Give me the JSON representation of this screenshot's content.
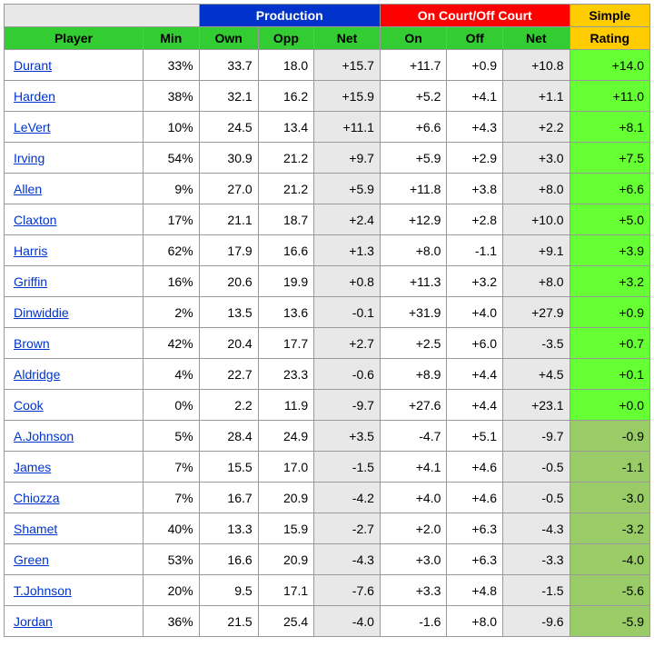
{
  "colors": {
    "group_blank_bg": "#e8e8e8",
    "group_prod_bg": "#0033cc",
    "group_prod_fg": "#ffffff",
    "group_court_bg": "#ff0000",
    "group_court_fg": "#ffffff",
    "group_simple_bg": "#ffcc00",
    "group_simple_fg": "#000000",
    "col_header_green_bg": "#33cc33",
    "col_header_yellow_bg": "#ffcc00",
    "shade_bg": "#e8e8e8",
    "rating_pos_bg": "#66ff33",
    "rating_neg_bg": "#99cc66",
    "link_color": "#0033cc",
    "border_color": "#999999"
  },
  "group_headers": {
    "production": "Production",
    "on_off": "On Court/Off Court",
    "simple": "Simple"
  },
  "columns": {
    "player": "Player",
    "min": "Min",
    "own": "Own",
    "opp": "Opp",
    "net_prod": "Net",
    "on": "On",
    "off": "Off",
    "net_court": "Net",
    "rating": "Rating"
  },
  "rows": [
    {
      "player": "Durant",
      "min": "33%",
      "own": "33.7",
      "opp": "18.0",
      "net_prod": "+15.7",
      "on": "+11.7",
      "off": "+0.9",
      "net_court": "+10.8",
      "rating": "+14.0"
    },
    {
      "player": "Harden",
      "min": "38%",
      "own": "32.1",
      "opp": "16.2",
      "net_prod": "+15.9",
      "on": "+5.2",
      "off": "+4.1",
      "net_court": "+1.1",
      "rating": "+11.0"
    },
    {
      "player": "LeVert",
      "min": "10%",
      "own": "24.5",
      "opp": "13.4",
      "net_prod": "+11.1",
      "on": "+6.6",
      "off": "+4.3",
      "net_court": "+2.2",
      "rating": "+8.1"
    },
    {
      "player": "Irving",
      "min": "54%",
      "own": "30.9",
      "opp": "21.2",
      "net_prod": "+9.7",
      "on": "+5.9",
      "off": "+2.9",
      "net_court": "+3.0",
      "rating": "+7.5"
    },
    {
      "player": "Allen",
      "min": "9%",
      "own": "27.0",
      "opp": "21.2",
      "net_prod": "+5.9",
      "on": "+11.8",
      "off": "+3.8",
      "net_court": "+8.0",
      "rating": "+6.6"
    },
    {
      "player": "Claxton",
      "min": "17%",
      "own": "21.1",
      "opp": "18.7",
      "net_prod": "+2.4",
      "on": "+12.9",
      "off": "+2.8",
      "net_court": "+10.0",
      "rating": "+5.0"
    },
    {
      "player": "Harris",
      "min": "62%",
      "own": "17.9",
      "opp": "16.6",
      "net_prod": "+1.3",
      "on": "+8.0",
      "off": "-1.1",
      "net_court": "+9.1",
      "rating": "+3.9"
    },
    {
      "player": "Griffin",
      "min": "16%",
      "own": "20.6",
      "opp": "19.9",
      "net_prod": "+0.8",
      "on": "+11.3",
      "off": "+3.2",
      "net_court": "+8.0",
      "rating": "+3.2"
    },
    {
      "player": "Dinwiddie",
      "min": "2%",
      "own": "13.5",
      "opp": "13.6",
      "net_prod": "-0.1",
      "on": "+31.9",
      "off": "+4.0",
      "net_court": "+27.9",
      "rating": "+0.9"
    },
    {
      "player": "Brown",
      "min": "42%",
      "own": "20.4",
      "opp": "17.7",
      "net_prod": "+2.7",
      "on": "+2.5",
      "off": "+6.0",
      "net_court": "-3.5",
      "rating": "+0.7"
    },
    {
      "player": "Aldridge",
      "min": "4%",
      "own": "22.7",
      "opp": "23.3",
      "net_prod": "-0.6",
      "on": "+8.9",
      "off": "+4.4",
      "net_court": "+4.5",
      "rating": "+0.1"
    },
    {
      "player": "Cook",
      "min": "0%",
      "own": "2.2",
      "opp": "11.9",
      "net_prod": "-9.7",
      "on": "+27.6",
      "off": "+4.4",
      "net_court": "+23.1",
      "rating": "+0.0"
    },
    {
      "player": "A.Johnson",
      "min": "5%",
      "own": "28.4",
      "opp": "24.9",
      "net_prod": "+3.5",
      "on": "-4.7",
      "off": "+5.1",
      "net_court": "-9.7",
      "rating": "-0.9"
    },
    {
      "player": "James",
      "min": "7%",
      "own": "15.5",
      "opp": "17.0",
      "net_prod": "-1.5",
      "on": "+4.1",
      "off": "+4.6",
      "net_court": "-0.5",
      "rating": "-1.1"
    },
    {
      "player": "Chiozza",
      "min": "7%",
      "own": "16.7",
      "opp": "20.9",
      "net_prod": "-4.2",
      "on": "+4.0",
      "off": "+4.6",
      "net_court": "-0.5",
      "rating": "-3.0"
    },
    {
      "player": "Shamet",
      "min": "40%",
      "own": "13.3",
      "opp": "15.9",
      "net_prod": "-2.7",
      "on": "+2.0",
      "off": "+6.3",
      "net_court": "-4.3",
      "rating": "-3.2"
    },
    {
      "player": "Green",
      "min": "53%",
      "own": "16.6",
      "opp": "20.9",
      "net_prod": "-4.3",
      "on": "+3.0",
      "off": "+6.3",
      "net_court": "-3.3",
      "rating": "-4.0"
    },
    {
      "player": "T.Johnson",
      "min": "20%",
      "own": "9.5",
      "opp": "17.1",
      "net_prod": "-7.6",
      "on": "+3.3",
      "off": "+4.8",
      "net_court": "-1.5",
      "rating": "-5.6"
    },
    {
      "player": "Jordan",
      "min": "36%",
      "own": "21.5",
      "opp": "25.4",
      "net_prod": "-4.0",
      "on": "-1.6",
      "off": "+8.0",
      "net_court": "-9.6",
      "rating": "-5.9"
    }
  ]
}
